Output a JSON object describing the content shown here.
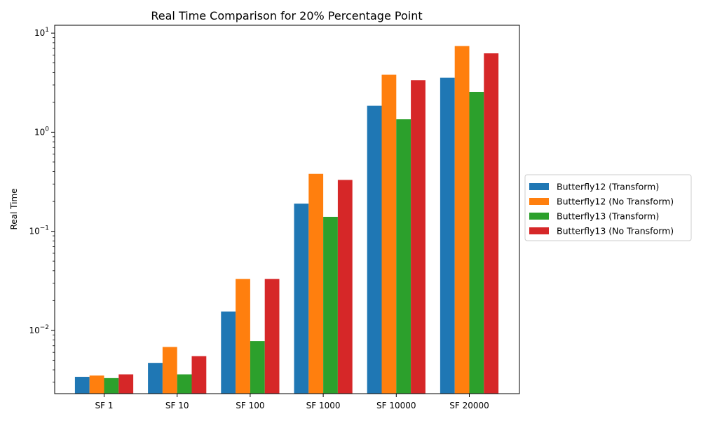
{
  "chart_data": {
    "type": "bar",
    "title": "Real Time Comparison for 20% Percentage Point",
    "xlabel": "",
    "ylabel": "Real Time",
    "yscale": "log",
    "ylim": [
      0.0023,
      12
    ],
    "yticks": [
      {
        "value": 0.01,
        "base": "10",
        "exp": "−2"
      },
      {
        "value": 0.1,
        "base": "10",
        "exp": "−1"
      },
      {
        "value": 1,
        "base": "10",
        "exp": "0"
      },
      {
        "value": 10,
        "base": "10",
        "exp": "1"
      }
    ],
    "categories": [
      "SF 1",
      "SF 10",
      "SF 100",
      "SF 1000",
      "SF 10000",
      "SF 20000"
    ],
    "series": [
      {
        "name": "Butterfly12 (Transform)",
        "color": "#1f77b4",
        "values": [
          0.0034,
          0.0047,
          0.0155,
          0.19,
          1.85,
          3.55
        ]
      },
      {
        "name": "Butterfly12 (No Transform)",
        "color": "#ff7f0e",
        "values": [
          0.0035,
          0.0068,
          0.033,
          0.38,
          3.8,
          7.4
        ]
      },
      {
        "name": "Butterfly13 (Transform)",
        "color": "#2ca02c",
        "values": [
          0.0033,
          0.0036,
          0.0078,
          0.14,
          1.35,
          2.55
        ]
      },
      {
        "name": "Butterfly13 (No Transform)",
        "color": "#d62728",
        "values": [
          0.0036,
          0.0055,
          0.033,
          0.33,
          3.35,
          6.25
        ]
      }
    ],
    "grid": false,
    "legend_position": "center-right outside"
  }
}
